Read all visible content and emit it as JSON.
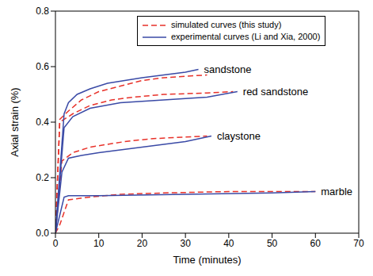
{
  "chart_data": {
    "type": "line",
    "xlabel": "Time (minutes)",
    "ylabel": "Axial strain (%)",
    "xlim": [
      0,
      70
    ],
    "xticks": [
      0,
      10,
      20,
      30,
      40,
      50,
      60,
      70
    ],
    "ylim": [
      0,
      0.8
    ],
    "yticks": [
      {
        "value": 0,
        "label": "0.0"
      },
      0.2,
      0.4,
      0.6,
      0.8
    ],
    "legend": "upper center",
    "grid": false,
    "series": [
      {
        "name": "simulated curves (this study)",
        "color": "#e8322a",
        "line_style": "dashed",
        "curves": [
          {
            "x": [
              0,
              1,
              3,
              6,
              10,
              15,
              20,
              25,
              30,
              35
            ],
            "values": [
              0,
              0.41,
              0.44,
              0.48,
              0.51,
              0.53,
              0.55,
              0.56,
              0.565,
              0.57
            ]
          },
          {
            "x": [
              0,
              1,
              4,
              8,
              13,
              18,
              25,
              35,
              41
            ],
            "values": [
              0,
              0.4,
              0.43,
              0.46,
              0.48,
              0.49,
              0.5,
              0.505,
              0.51
            ]
          },
          {
            "x": [
              0,
              1.5,
              4,
              8,
              12,
              16,
              22,
              28,
              35
            ],
            "values": [
              0,
              0.26,
              0.29,
              0.31,
              0.32,
              0.33,
              0.34,
              0.345,
              0.35
            ]
          },
          {
            "x": [
              0,
              1,
              3,
              8,
              15,
              25,
              40,
              60
            ],
            "values": [
              0,
              0.03,
              0.12,
              0.13,
              0.14,
              0.145,
              0.15,
              0.15
            ]
          }
        ]
      },
      {
        "name": "experimental curves (Li and Xia, 2000)",
        "color": "#3a4aa6",
        "line_style": "solid",
        "curves": [
          {
            "x": [
              0,
              2,
              3,
              5,
              8,
              12,
              16,
              20,
              25,
              30,
              33
            ],
            "values": [
              0,
              0.43,
              0.47,
              0.5,
              0.52,
              0.54,
              0.55,
              0.56,
              0.57,
              0.58,
              0.59
            ]
          },
          {
            "x": [
              0,
              2,
              4,
              8,
              15,
              25,
              35,
              42
            ],
            "values": [
              0,
              0.38,
              0.42,
              0.45,
              0.47,
              0.48,
              0.49,
              0.51
            ]
          },
          {
            "x": [
              0,
              1.5,
              3,
              6,
              10,
              15,
              20,
              25,
              30,
              36
            ],
            "values": [
              0,
              0.22,
              0.27,
              0.28,
              0.29,
              0.3,
              0.31,
              0.32,
              0.33,
              0.35
            ]
          },
          {
            "x": [
              0,
              2,
              3,
              10,
              30,
              50,
              60
            ],
            "values": [
              0,
              0.13,
              0.135,
              0.135,
              0.14,
              0.145,
              0.15
            ]
          }
        ]
      }
    ],
    "annotations": [
      "sandstone",
      "red sandstone",
      "claystone",
      "marble"
    ]
  }
}
